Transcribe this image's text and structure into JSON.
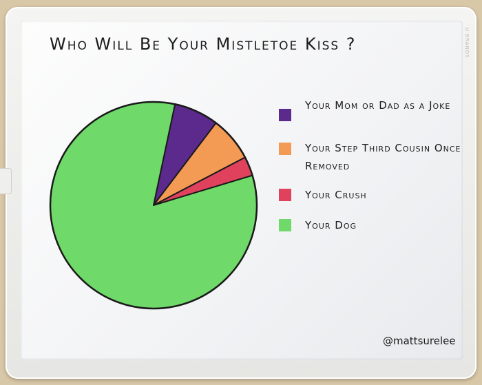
{
  "brand": "U BRANDS",
  "handle": "@mattsurelee",
  "chart_data": {
    "type": "pie",
    "title": "Who Will Be Your Mistletoe Kiss ?",
    "slices": [
      {
        "label": "Your Mom or Dad as a Joke",
        "value": 7,
        "color": "#5b2a8c"
      },
      {
        "label": "Your Step Third Cousin Once Removed",
        "value": 7,
        "color": "#f39a55"
      },
      {
        "label": "Your Crush",
        "value": 3,
        "color": "#e0425e"
      },
      {
        "label": "Your Dog",
        "value": 83,
        "color": "#6fd96a"
      }
    ],
    "legend_placement": "right"
  }
}
